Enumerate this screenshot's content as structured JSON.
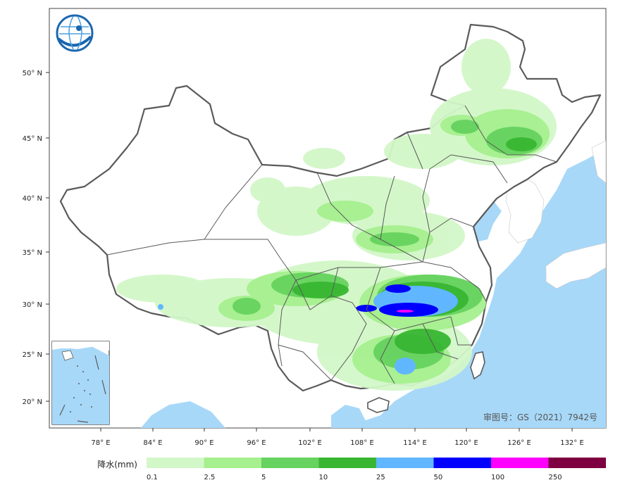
{
  "map": {
    "approval_number": "审图号：GS（2021）7942号",
    "lat_labels": [
      "50° N",
      "45° N",
      "40° N",
      "35° N",
      "30° N",
      "25° N",
      "20° N"
    ],
    "lon_labels": [
      "78° E",
      "84° E",
      "90° E",
      "96° E",
      "102° E",
      "108° E",
      "114° E",
      "120° E",
      "126° E",
      "132° E"
    ]
  },
  "legend": {
    "title": "降水(mm)",
    "values": [
      "0.1",
      "2.5",
      "5",
      "10",
      "25",
      "50",
      "100",
      "250"
    ],
    "colors": [
      "#d2f7c8",
      "#a6f08f",
      "#66d25f",
      "#38b632",
      "#60b7ff",
      "#0000fe",
      "#fd00fe",
      "#7f0040"
    ]
  },
  "colors": {
    "sea": "#a8d8f8",
    "land": "#ffffff",
    "border": "#5a5a5a",
    "logo": "#1a66b0"
  }
}
